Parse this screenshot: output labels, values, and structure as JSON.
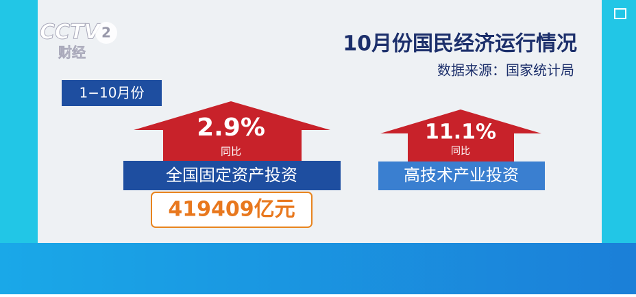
{
  "logo": {
    "channel": "CCTV",
    "number": "2",
    "name": "财经"
  },
  "header": {
    "title": "10月份国民经济运行情况",
    "source": "数据来源：国家统计局"
  },
  "period": "1−10月份",
  "items": [
    {
      "change": "2.9%",
      "change_label": "同比",
      "name": "全国固定资产投资",
      "amount": "419409亿元"
    },
    {
      "change": "11.1%",
      "change_label": "同比",
      "name": "高技术产业投资"
    }
  ]
}
